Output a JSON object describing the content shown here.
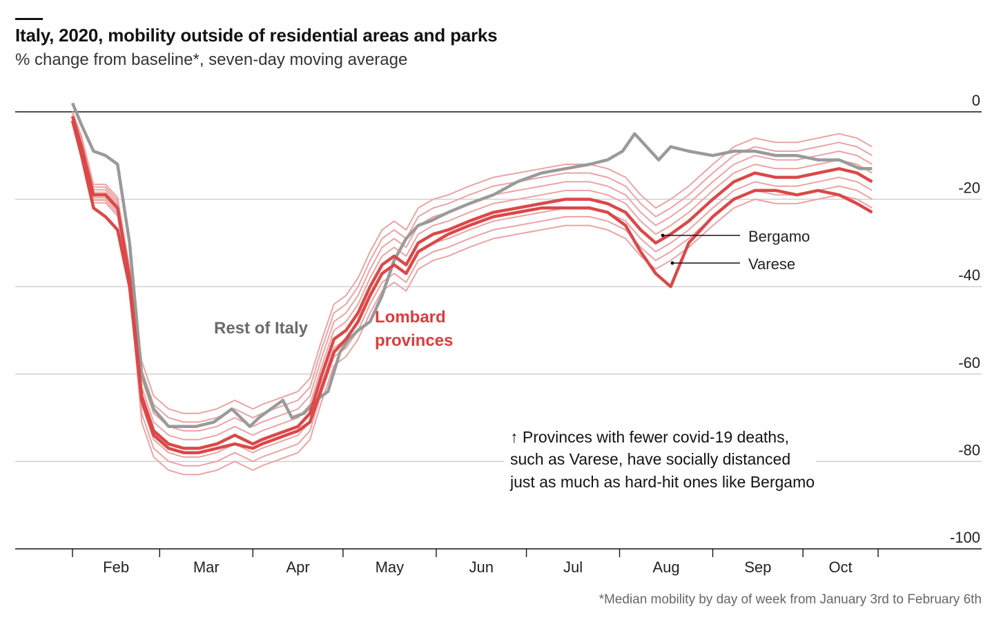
{
  "header": {
    "title": "Italy, 2020, mobility outside of residential areas and parks",
    "subtitle": "% change from baseline*, seven-day moving average"
  },
  "footnote": "*Median mobility by day of week from January 3rd to February 6th",
  "colors": {
    "rest_of_italy": "#9a9a9a",
    "lombard_bold": "#db4848",
    "lombard_thin": "#eba3a3",
    "grid": "#cccccc",
    "zero_line": "#121212"
  },
  "chart_data": {
    "type": "line",
    "title": "Italy, 2020, mobility outside of residential areas and parks",
    "ylabel": "% change from baseline*, seven-day moving average",
    "ylim": [
      -100,
      0
    ],
    "yticks": [
      0,
      -20,
      -40,
      -60,
      -80,
      -100
    ],
    "ytick_labels": [
      "0",
      "-20",
      "-40",
      "-60",
      "-80",
      "-100"
    ],
    "xlim": [
      "2020-02-01",
      "2020-10-26"
    ],
    "x_tick_dates": [
      "2020-02-01",
      "2020-03-01",
      "2020-04-01",
      "2020-05-01",
      "2020-06-01",
      "2020-07-01",
      "2020-08-01",
      "2020-09-01",
      "2020-10-01"
    ],
    "x_tick_labels": [
      "Feb",
      "Mar",
      "Apr",
      "May",
      "Jun",
      "Jul",
      "Aug",
      "Sep",
      "Oct"
    ],
    "grid": true,
    "labels": {
      "rest_of_italy": "Rest of Italy",
      "lombard": [
        "Lombard",
        "provinces"
      ],
      "bergamo": "Bergamo",
      "varese": "Varese"
    },
    "annotation_lines": [
      "↑ Provinces with fewer covid-19 deaths,",
      "such as Varese, have socially distanced",
      "just as much as hard-hit ones like Bergamo"
    ],
    "series": [
      {
        "name": "Rest of Italy",
        "style": "grey",
        "x": [
          "2020-02-01",
          "2020-02-04",
          "2020-02-08",
          "2020-02-12",
          "2020-02-16",
          "2020-02-20",
          "2020-02-24",
          "2020-02-28",
          "2020-03-04",
          "2020-03-08",
          "2020-03-13",
          "2020-03-19",
          "2020-03-25",
          "2020-03-31",
          "2020-04-03",
          "2020-04-07",
          "2020-04-11",
          "2020-04-14",
          "2020-04-18",
          "2020-04-22",
          "2020-04-26",
          "2020-04-30",
          "2020-05-03",
          "2020-05-06",
          "2020-05-10",
          "2020-05-14",
          "2020-05-18",
          "2020-05-22",
          "2020-05-26",
          "2020-05-30",
          "2020-06-05",
          "2020-06-12",
          "2020-06-20",
          "2020-06-28",
          "2020-07-06",
          "2020-07-14",
          "2020-07-22",
          "2020-07-28",
          "2020-08-02",
          "2020-08-06",
          "2020-08-10",
          "2020-08-14",
          "2020-08-18",
          "2020-08-24",
          "2020-09-01",
          "2020-09-08",
          "2020-09-15",
          "2020-09-22",
          "2020-09-29",
          "2020-10-06",
          "2020-10-13",
          "2020-10-20",
          "2020-10-24"
        ],
        "y": [
          2,
          -3,
          -9,
          -10,
          -12,
          -30,
          -60,
          -68,
          -72,
          -72,
          -72,
          -71,
          -68,
          -72,
          -70,
          -68,
          -66,
          -70,
          -69,
          -66,
          -64,
          -55,
          -52,
          -50,
          -48,
          -42,
          -34,
          -29,
          -26,
          -25,
          -23,
          -21,
          -19,
          -16,
          -14,
          -13,
          -12,
          -11,
          -9,
          -5,
          -8,
          -11,
          -8,
          -9,
          -10,
          -9,
          -9,
          -10,
          -10,
          -11,
          -11,
          -13,
          -13
        ]
      },
      {
        "name": "Bergamo",
        "style": "bold",
        "x": [
          "2020-02-01",
          "2020-02-04",
          "2020-02-08",
          "2020-02-12",
          "2020-02-16",
          "2020-02-20",
          "2020-02-24",
          "2020-02-28",
          "2020-03-04",
          "2020-03-09",
          "2020-03-14",
          "2020-03-20",
          "2020-03-26",
          "2020-04-01",
          "2020-04-04",
          "2020-04-08",
          "2020-04-12",
          "2020-04-16",
          "2020-04-20",
          "2020-04-24",
          "2020-04-28",
          "2020-05-02",
          "2020-05-06",
          "2020-05-10",
          "2020-05-14",
          "2020-05-18",
          "2020-05-22",
          "2020-05-26",
          "2020-05-31",
          "2020-06-05",
          "2020-06-12",
          "2020-06-20",
          "2020-06-28",
          "2020-07-06",
          "2020-07-14",
          "2020-07-22",
          "2020-07-28",
          "2020-08-03",
          "2020-08-08",
          "2020-08-13",
          "2020-08-18",
          "2020-08-24",
          "2020-09-01",
          "2020-09-08",
          "2020-09-15",
          "2020-09-22",
          "2020-09-29",
          "2020-10-06",
          "2020-10-13",
          "2020-10-19",
          "2020-10-24"
        ],
        "y": [
          -1,
          -8,
          -19,
          -19,
          -22,
          -38,
          -65,
          -73,
          -76,
          -77,
          -77,
          -76,
          -74,
          -76,
          -75,
          -74,
          -73,
          -72,
          -69,
          -60,
          -52,
          -50,
          -46,
          -40,
          -35,
          -33,
          -35,
          -30,
          -28,
          -27,
          -25,
          -23,
          -22,
          -21,
          -20,
          -20,
          -21,
          -23,
          -27,
          -30,
          -28,
          -25,
          -20,
          -16,
          -14,
          -15,
          -15,
          -14,
          -13,
          -14,
          -16
        ]
      },
      {
        "name": "Varese",
        "style": "bold",
        "x": [
          "2020-02-01",
          "2020-02-04",
          "2020-02-08",
          "2020-02-12",
          "2020-02-16",
          "2020-02-20",
          "2020-02-24",
          "2020-02-28",
          "2020-03-04",
          "2020-03-09",
          "2020-03-14",
          "2020-03-20",
          "2020-03-26",
          "2020-04-01",
          "2020-04-04",
          "2020-04-08",
          "2020-04-12",
          "2020-04-16",
          "2020-04-20",
          "2020-04-24",
          "2020-04-28",
          "2020-05-02",
          "2020-05-06",
          "2020-05-10",
          "2020-05-14",
          "2020-05-18",
          "2020-05-22",
          "2020-05-26",
          "2020-05-31",
          "2020-06-05",
          "2020-06-12",
          "2020-06-20",
          "2020-06-28",
          "2020-07-06",
          "2020-07-14",
          "2020-07-22",
          "2020-07-28",
          "2020-08-03",
          "2020-08-08",
          "2020-08-13",
          "2020-08-18",
          "2020-08-24",
          "2020-09-01",
          "2020-09-08",
          "2020-09-15",
          "2020-09-22",
          "2020-09-29",
          "2020-10-06",
          "2020-10-13",
          "2020-10-19",
          "2020-10-24"
        ],
        "y": [
          -2,
          -10,
          -22,
          -24,
          -27,
          -40,
          -66,
          -74,
          -77,
          -78,
          -78,
          -77,
          -76,
          -77,
          -76,
          -75,
          -74,
          -73,
          -71,
          -63,
          -55,
          -52,
          -48,
          -42,
          -37,
          -35,
          -37,
          -32,
          -30,
          -28,
          -26,
          -24,
          -23,
          -22,
          -22,
          -22,
          -23,
          -26,
          -32,
          -37,
          -40,
          -30,
          -24,
          -20,
          -18,
          -18,
          -19,
          -18,
          -19,
          -21,
          -23
        ]
      },
      {
        "name": "",
        "style": "thin",
        "offset": 2
      },
      {
        "name": "",
        "style": "thin",
        "offset": -2
      },
      {
        "name": "",
        "style": "thin",
        "offset": 4
      },
      {
        "name": "",
        "style": "thin",
        "offset": -4
      },
      {
        "name": "",
        "style": "thin",
        "offset": 6
      },
      {
        "name": "",
        "style": "thin",
        "offset": -6
      },
      {
        "name": "",
        "style": "thin",
        "offset": 8
      }
    ]
  }
}
